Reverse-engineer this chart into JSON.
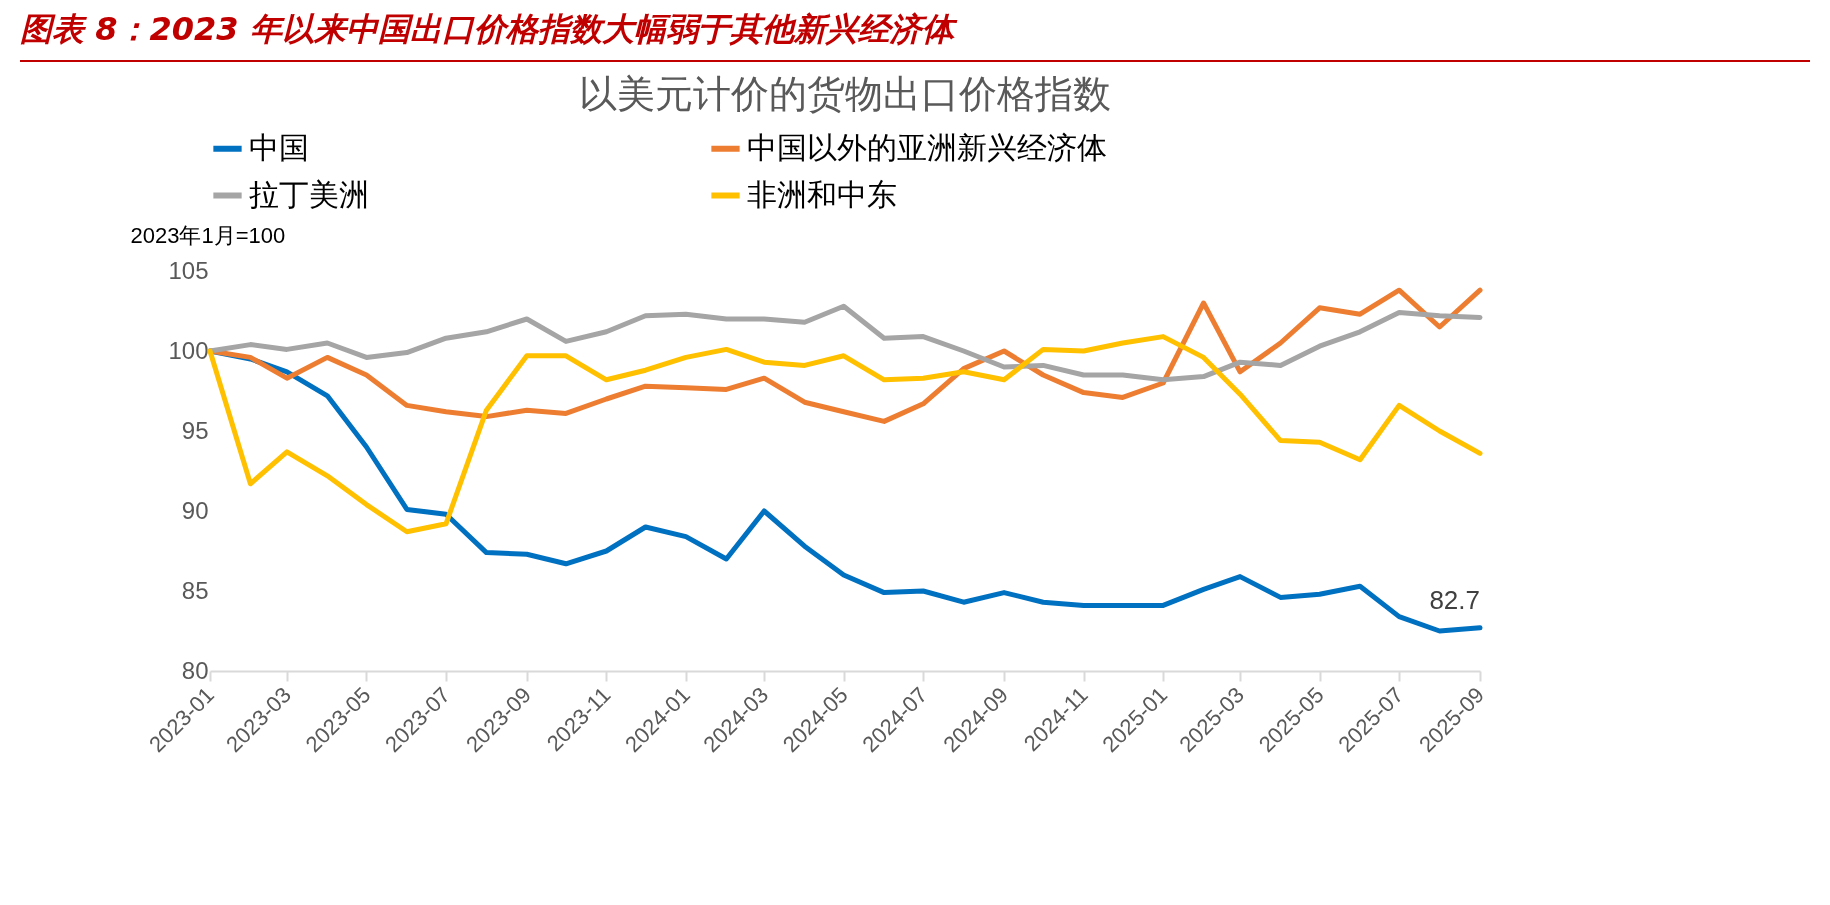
{
  "chart_data": {
    "type": "line",
    "title": "图表 8：2023 年以来中国出口价格指数大幅弱于其他新兴经济体",
    "subtitle": "以美元计价的货物出口价格指数",
    "ylabel": "2023年1月=100",
    "x": [
      "2023-01",
      "2023-02",
      "2023-03",
      "2023-04",
      "2023-05",
      "2023-06",
      "2023-07",
      "2023-08",
      "2023-09",
      "2023-10",
      "2023-11",
      "2023-12",
      "2024-01",
      "2024-02",
      "2024-03",
      "2024-04",
      "2024-05",
      "2024-06",
      "2024-07",
      "2024-08",
      "2024-09",
      "2024-10",
      "2024-11",
      "2024-12",
      "2025-01",
      "2025-02",
      "2025-03",
      "2025-04",
      "2025-05",
      "2025-06",
      "2025-07",
      "2025-08",
      "2025-09"
    ],
    "xlim": [
      "2023-01",
      "2025-09"
    ],
    "xticks": [
      "2023-01",
      "2023-03",
      "2023-05",
      "2023-07",
      "2023-09",
      "2023-11",
      "2024-01",
      "2024-03",
      "2024-05",
      "2024-07",
      "2024-09",
      "2024-11",
      "2025-01",
      "2025-03",
      "2025-05",
      "2025-07",
      "2025-09"
    ],
    "ylim": [
      80,
      105
    ],
    "yticks": [
      80,
      85,
      90,
      95,
      100,
      105
    ],
    "legend": "top",
    "line_style": "solid",
    "series": [
      {
        "name": "中国",
        "color": "#0070c0",
        "values": [
          100,
          99.5,
          98.7,
          97.2,
          94.0,
          90.1,
          89.8,
          87.4,
          87.3,
          86.7,
          87.5,
          89.0,
          88.4,
          87.0,
          90.0,
          87.8,
          86.0,
          84.9,
          85.0,
          84.3,
          84.9,
          84.3,
          84.1,
          84.1,
          84.1,
          85.1,
          85.9,
          84.6,
          84.8,
          85.3,
          83.4,
          82.5,
          82.7
        ],
        "value_labels": [
          null,
          null,
          null,
          null,
          null,
          null,
          null,
          null,
          null,
          null,
          null,
          null,
          null,
          null,
          null,
          null,
          null,
          null,
          null,
          null,
          null,
          null,
          null,
          null,
          null,
          null,
          null,
          null,
          null,
          null,
          null,
          null,
          "82.7"
        ]
      },
      {
        "name": "中国以外的亚洲新兴经济体",
        "color": "#ed7d31",
        "values": [
          100,
          99.6,
          98.3,
          99.6,
          98.5,
          96.6,
          96.2,
          95.9,
          96.3,
          96.1,
          97.0,
          97.8,
          97.7,
          97.6,
          98.3,
          96.8,
          96.2,
          95.6,
          96.7,
          98.9,
          100.0,
          98.5,
          97.4,
          97.1,
          98.0,
          103.0,
          98.7,
          100.5,
          102.7,
          102.3,
          103.8,
          101.5,
          103.8
        ]
      },
      {
        "name": "拉丁美洲",
        "color": "#a5a5a5",
        "values": [
          100,
          100.4,
          100.1,
          100.5,
          99.6,
          99.9,
          100.8,
          101.2,
          102.0,
          100.6,
          101.2,
          102.2,
          102.3,
          102.0,
          102.0,
          101.8,
          102.8,
          100.8,
          100.9,
          100.0,
          99.0,
          99.1,
          98.5,
          98.5,
          98.2,
          98.4,
          99.3,
          99.1,
          100.3,
          101.2,
          102.4,
          102.2,
          102.1
        ]
      },
      {
        "name": "非洲和中东",
        "color": "#ffc000",
        "values": [
          100,
          91.7,
          93.7,
          92.2,
          90.4,
          88.7,
          89.2,
          96.3,
          99.7,
          99.7,
          98.2,
          98.8,
          99.6,
          100.1,
          99.3,
          99.1,
          99.7,
          98.2,
          98.3,
          98.7,
          98.2,
          100.1,
          100.0,
          100.5,
          100.9,
          99.6,
          97.3,
          94.4,
          94.3,
          93.2,
          96.6,
          95.0,
          93.6
        ]
      }
    ]
  }
}
